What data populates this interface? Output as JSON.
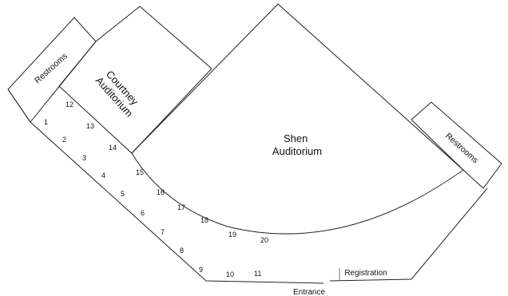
{
  "rooms": {
    "shen": [
      "Shen",
      "Auditorium"
    ],
    "courtney": [
      "Courtney",
      "Auditorium"
    ],
    "restrooms_left": "Restrooms",
    "restrooms_right": "Restrooms"
  },
  "labels": {
    "entrance": "Entrance",
    "registration": "Registration"
  },
  "rooms_numbered": [
    "1",
    "2",
    "3",
    "4",
    "5",
    "6",
    "7",
    "8",
    "9",
    "10",
    "11",
    "12",
    "13",
    "14",
    "15",
    "16",
    "17",
    "18",
    "19",
    "20"
  ]
}
